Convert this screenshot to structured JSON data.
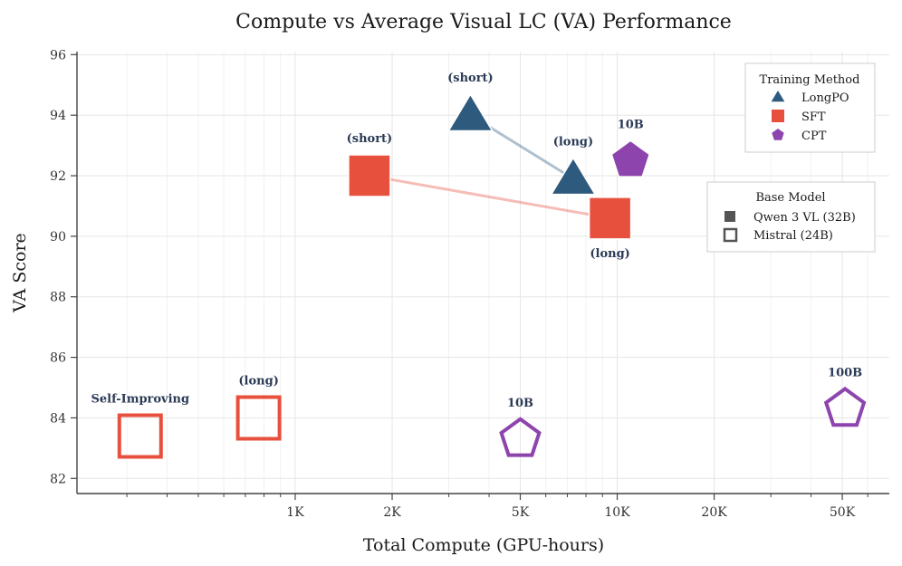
{
  "chart_data": {
    "type": "scatter",
    "title": "Compute vs Average Visual LC (VA) Performance",
    "xlabel": "Total Compute (GPU-hours)",
    "ylabel": "VA Score",
    "xscale": "log",
    "xlim": [
      210,
      70000
    ],
    "ylim": [
      81.5,
      96.1
    ],
    "xticks": [
      {
        "value": 1000,
        "label": "1K"
      },
      {
        "value": 2000,
        "label": "2K"
      },
      {
        "value": 5000,
        "label": "5K"
      },
      {
        "value": 10000,
        "label": "10K"
      },
      {
        "value": 20000,
        "label": "20K"
      },
      {
        "value": 50000,
        "label": "50K"
      }
    ],
    "yticks": [
      82,
      84,
      86,
      88,
      90,
      92,
      94,
      96
    ],
    "grid": true,
    "colors": {
      "LongPO": "#2e5a7e",
      "SFT": "#e8503e",
      "CPT": "#8e44ad"
    },
    "points": [
      {
        "method": "LongPO",
        "base": "Qwen 3 VL (32B)",
        "x": 3500,
        "y": 94.0,
        "label": "(short)",
        "label_pos": "above"
      },
      {
        "method": "LongPO",
        "base": "Qwen 3 VL (32B)",
        "x": 7300,
        "y": 91.9,
        "label": "(long)",
        "label_pos": "above"
      },
      {
        "method": "SFT",
        "base": "Qwen 3 VL (32B)",
        "x": 1700,
        "y": 92.0,
        "label": "(short)",
        "label_pos": "above"
      },
      {
        "method": "SFT",
        "base": "Qwen 3 VL (32B)",
        "x": 9500,
        "y": 90.6,
        "label": "(long)",
        "label_pos": "below"
      },
      {
        "method": "CPT",
        "base": "Qwen 3 VL (32B)",
        "x": 11000,
        "y": 92.5,
        "label": "10B",
        "label_pos": "above"
      },
      {
        "method": "SFT",
        "base": "Mistral (24B)",
        "x": 330,
        "y": 83.4,
        "label": "Self-Improving",
        "label_pos": "above"
      },
      {
        "method": "SFT",
        "base": "Mistral (24B)",
        "x": 770,
        "y": 84.0,
        "label": "(long)",
        "label_pos": "above"
      },
      {
        "method": "CPT",
        "base": "Mistral (24B)",
        "x": 5000,
        "y": 83.3,
        "label": "10B",
        "label_pos": "above"
      },
      {
        "method": "CPT",
        "base": "Mistral (24B)",
        "x": 51000,
        "y": 84.3,
        "label": "100B",
        "label_pos": "above"
      }
    ],
    "connectors": [
      {
        "method": "LongPO",
        "from": 0,
        "to": 1
      },
      {
        "method": "SFT",
        "from": 2,
        "to": 3
      }
    ],
    "legend_method": {
      "title": "Training Method",
      "placement": "top-right",
      "items": [
        {
          "label": "LongPO",
          "marker": "triangle"
        },
        {
          "label": "SFT",
          "marker": "square"
        },
        {
          "label": "CPT",
          "marker": "pentagon"
        }
      ]
    },
    "legend_base": {
      "title": "Base Model",
      "placement": "upper-right",
      "items": [
        {
          "label": "Qwen 3 VL (32B)",
          "style": "filled"
        },
        {
          "label": "Mistral (24B)",
          "style": "hollow"
        }
      ]
    }
  }
}
